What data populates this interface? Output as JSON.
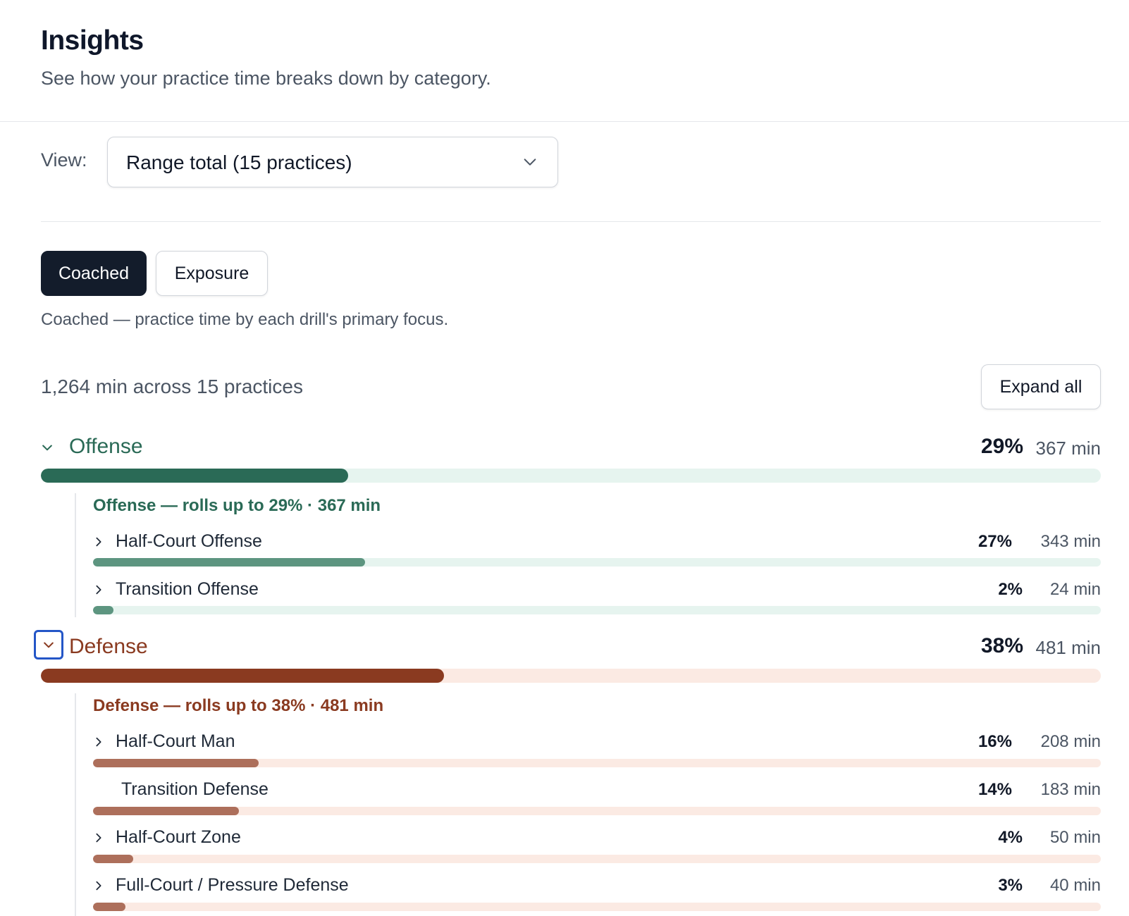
{
  "header": {
    "title": "Insights",
    "subtitle": "See how your practice time breaks down by category."
  },
  "view": {
    "label": "View:",
    "selected": "Range total (15 practices)"
  },
  "mode": {
    "options": [
      "Coached",
      "Exposure"
    ],
    "active": "Coached",
    "description": "Coached — practice time by each drill's primary focus."
  },
  "summary": {
    "text": "1,264 min across 15 practices",
    "expand_label": "Expand all"
  },
  "colors": {
    "offense_primary": "#2a6a56",
    "offense_sub": "#5d9580",
    "offense_track": "#e6f4ef",
    "defense_primary": "#8a3a20",
    "defense_sub": "#ad6f5b",
    "defense_track": "#fbeae3",
    "focus_ring": "#2456c7"
  },
  "categories": [
    {
      "name": "Offense",
      "pct": "29%",
      "minutes": "367 min",
      "fraction": 0.29,
      "rollup": "Offense — rolls up to 29% · 367 min",
      "subs": [
        {
          "name": "Half-Court Offense",
          "pct": "27%",
          "minutes": "343 min",
          "fraction": 0.27,
          "has_chevron": true
        },
        {
          "name": "Transition Offense",
          "pct": "2%",
          "minutes": "24 min",
          "fraction": 0.02,
          "has_chevron": true
        }
      ]
    },
    {
      "name": "Defense",
      "pct": "38%",
      "minutes": "481 min",
      "fraction": 0.38,
      "rollup": "Defense — rolls up to 38% · 481 min",
      "subs": [
        {
          "name": "Half-Court Man",
          "pct": "16%",
          "minutes": "208 min",
          "fraction": 0.164,
          "has_chevron": true
        },
        {
          "name": "Transition Defense",
          "pct": "14%",
          "minutes": "183 min",
          "fraction": 0.145,
          "has_chevron": false
        },
        {
          "name": "Half-Court Zone",
          "pct": "4%",
          "minutes": "50 min",
          "fraction": 0.04,
          "has_chevron": true
        },
        {
          "name": "Full-Court / Pressure Defense",
          "pct": "3%",
          "minutes": "40 min",
          "fraction": 0.032,
          "has_chevron": true
        }
      ]
    }
  ]
}
